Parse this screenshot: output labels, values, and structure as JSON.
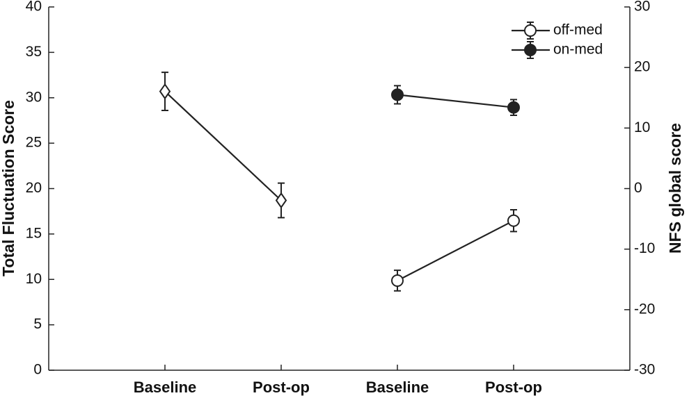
{
  "chart_data": {
    "type": "line",
    "categories": [
      "Baseline",
      "Post-op",
      "Baseline",
      "Post-op"
    ],
    "ylabel": "Total Fluctuation Score",
    "y2label": "NFS global score",
    "ylim": [
      0,
      40
    ],
    "yticks": [
      0,
      5,
      10,
      15,
      20,
      25,
      30,
      35,
      40
    ],
    "y2lim": [
      -30,
      30
    ],
    "y2ticks": [
      -30,
      -20,
      -10,
      0,
      10,
      20,
      30
    ],
    "legend": "upper right",
    "series": [
      {
        "color": "#222222",
        "marker": "diamond",
        "filled": false,
        "axis": "y",
        "values": [
          30.7,
          18.7,
          null,
          null
        ],
        "errors": [
          2.1,
          1.9,
          null,
          null
        ]
      },
      {
        "name": "off-med",
        "color": "#222222",
        "marker": "circle",
        "filled": false,
        "axis": "y2",
        "values": [
          null,
          null,
          -15.2,
          -5.3
        ],
        "errors": [
          null,
          null,
          1.7,
          1.8
        ]
      },
      {
        "name": "on-med",
        "color": "#222222",
        "marker": "circle",
        "filled": true,
        "axis": "y2",
        "values": [
          null,
          null,
          15.5,
          13.4
        ],
        "errors": [
          null,
          null,
          1.5,
          1.3
        ]
      }
    ]
  }
}
